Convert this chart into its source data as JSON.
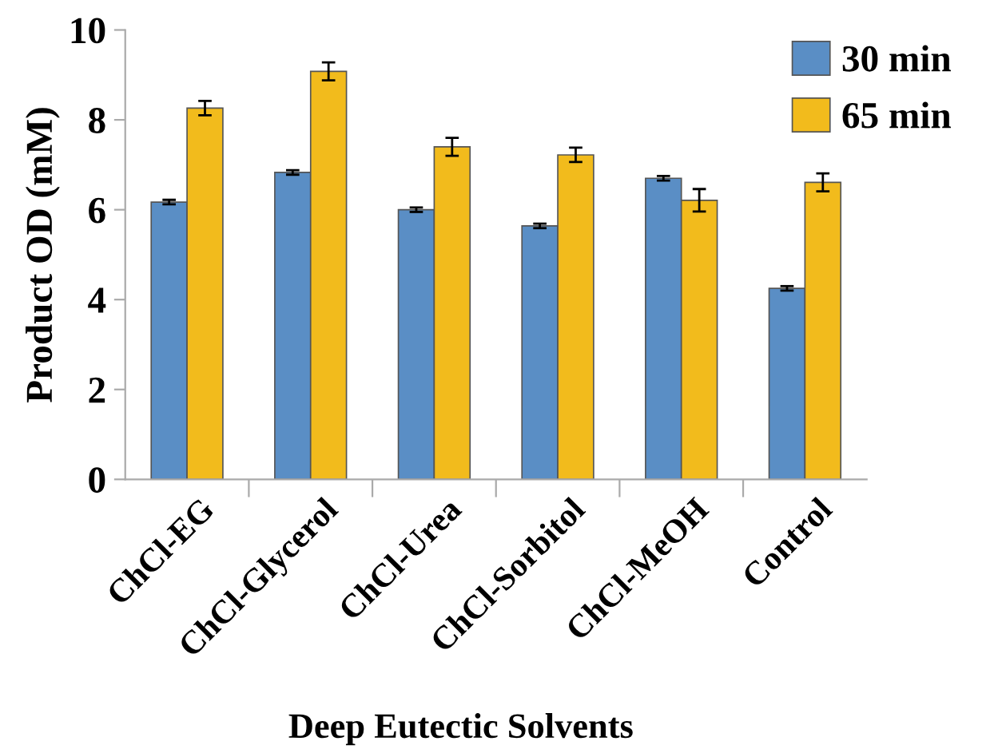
{
  "chart_data": {
    "type": "bar",
    "xlabel": "Deep Eutectic Solvents",
    "ylabel": "Product OD (mM)",
    "categories": [
      "ChCl-EG",
      "ChCl-Glycerol",
      "ChCl-Urea",
      "ChCl-Sorbitol",
      "ChCl-MeOH",
      "Control"
    ],
    "series": [
      {
        "name": "30 min",
        "color": "#5a8ec5",
        "values": [
          6.17,
          6.83,
          6.0,
          5.64,
          6.7,
          4.25
        ],
        "errors": [
          0.05,
          0.05,
          0.05,
          0.05,
          0.05,
          0.05
        ]
      },
      {
        "name": "65 min",
        "color": "#f2bb1c",
        "values": [
          8.26,
          9.08,
          7.4,
          7.22,
          6.21,
          6.61
        ],
        "errors": [
          0.16,
          0.2,
          0.2,
          0.16,
          0.25,
          0.2
        ]
      }
    ],
    "ylim": [
      0,
      10
    ],
    "yticks": [
      0,
      2,
      4,
      6,
      8,
      10
    ],
    "grid": false,
    "legend": "top right"
  }
}
